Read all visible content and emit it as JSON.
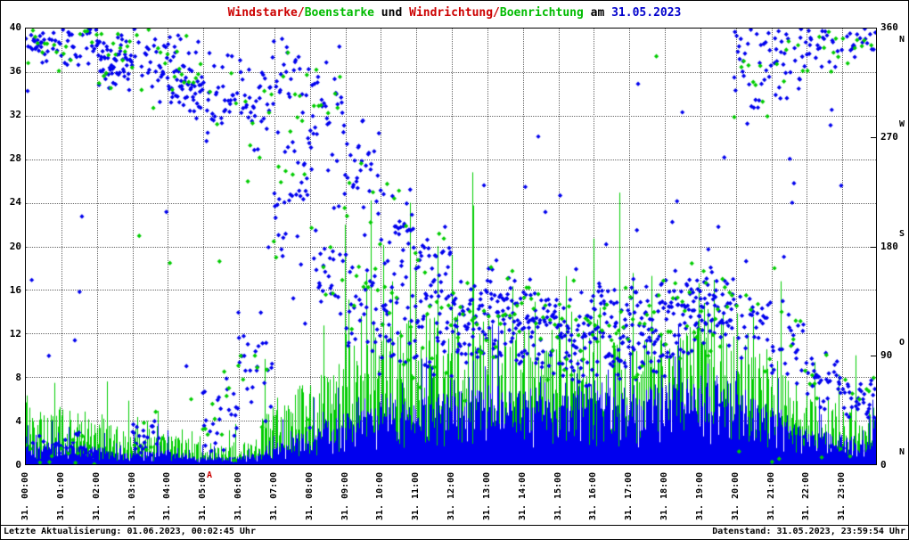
{
  "header": {
    "segments": [
      {
        "text": "Windstarke/",
        "color": "#cc0000"
      },
      {
        "text": "Boenstarke",
        "color": "#00bb00"
      },
      {
        "text": " und ",
        "color": "#000000"
      },
      {
        "text": "Windrichtung/",
        "color": "#cc0000"
      },
      {
        "text": "Boenrichtung",
        "color": "#00bb00"
      },
      {
        "text": " am ",
        "color": "#000000"
      },
      {
        "text": "31.05.2023",
        "color": "#0000cc"
      }
    ]
  },
  "footer": {
    "left": "Letzte Aktualisierung: 01.06.2023, 00:02:45 Uhr",
    "right": "Datenstand: 31.05.2023, 23:59:54 Uhr"
  },
  "marker": {
    "label": "A"
  },
  "chart_data": {
    "type": "line",
    "title": "Windstarke/Boenstarke und Windrichtung/Boenrichtung am 31.05.2023",
    "grid": {
      "style": "dotted",
      "vertical": "hourly",
      "horizontal_step_left": 4
    },
    "x_ticks": [
      "31. 00:00",
      "31. 01:00",
      "31. 02:00",
      "31. 03:00",
      "31. 04:00",
      "31. 05:00",
      "31. 06:00",
      "31. 07:00",
      "31. 08:00",
      "31. 09:00",
      "31. 10:00",
      "31. 11:00",
      "31. 12:00",
      "31. 13:00",
      "31. 14:00",
      "31. 15:00",
      "31. 16:00",
      "31. 17:00",
      "31. 18:00",
      "31. 19:00",
      "31. 20:00",
      "31. 21:00",
      "31. 22:00",
      "31. 23:00"
    ],
    "y_left": {
      "min": 0,
      "max": 40,
      "step": 4,
      "ticks": [
        40,
        36,
        32,
        28,
        24,
        20,
        16,
        12,
        8,
        4,
        0
      ]
    },
    "y_right": {
      "min": 0,
      "max": 360,
      "ticks": [
        {
          "deg": 360,
          "label": "360",
          "compass": "N"
        },
        {
          "deg": 270,
          "label": "270",
          "compass": "W"
        },
        {
          "deg": 180,
          "label": "180",
          "compass": "S"
        },
        {
          "deg": 90,
          "label": "90",
          "compass": "O"
        },
        {
          "deg": 0,
          "label": "0",
          "compass": "N"
        }
      ]
    },
    "series": [
      {
        "name": "Boenstarke",
        "style": "spike",
        "axis": "left",
        "color": "#00cc00",
        "hourly_mean": [
          4,
          4,
          3,
          2.5,
          2.5,
          1.5,
          1.2,
          4,
          6,
          8,
          10,
          10,
          11,
          10,
          9.5,
          9,
          10,
          9,
          9,
          11,
          10,
          7,
          5,
          4
        ],
        "hourly_max": [
          9,
          10,
          7,
          9,
          8,
          5,
          4,
          12,
          18,
          22,
          28,
          24,
          28,
          26,
          24,
          22,
          28,
          24,
          24,
          28,
          26,
          18,
          14,
          10
        ]
      },
      {
        "name": "Windstarke",
        "style": "spike",
        "axis": "left",
        "color": "#0000ee",
        "hourly_mean": [
          1.5,
          1.5,
          1.2,
          0.8,
          1,
          0.5,
          0.5,
          1.2,
          2.5,
          3.5,
          4.5,
          4.5,
          5,
          5.5,
          5,
          5,
          5,
          5,
          5.5,
          6,
          5,
          4,
          2.5,
          2
        ],
        "hourly_max": [
          4,
          4,
          3,
          3,
          4,
          2,
          2,
          4,
          6,
          8,
          10,
          10,
          11,
          13,
          12,
          11,
          12,
          11,
          12,
          14,
          12,
          10,
          7,
          6
        ]
      },
      {
        "name": "Windrichtung",
        "style": "diamond",
        "axis": "right",
        "color": "#0000ee",
        "interval_min": 1,
        "hourly_centers": [
          [
            345,
            5
          ],
          [
            345,
            10
          ],
          [
            335
          ],
          [
            330,
            15
          ],
          [
            320
          ],
          [
            305,
            40
          ],
          [
            295,
            80
          ],
          [
            220,
            320
          ],
          [
            160,
            290
          ],
          [
            130,
            240
          ],
          [
            115,
            190
          ],
          [
            105,
            160
          ],
          [
            115
          ],
          [
            125
          ],
          [
            115
          ],
          [
            105
          ],
          [
            110
          ],
          [
            110
          ],
          [
            120
          ],
          [
            130
          ],
          [
            120,
            330
          ],
          [
            100,
            340
          ],
          [
            70,
            350
          ],
          [
            55,
            355
          ]
        ],
        "hourly_spread": [
          20,
          20,
          28,
          32,
          40,
          45,
          55,
          65,
          60,
          55,
          50,
          45,
          50,
          50,
          45,
          45,
          45,
          45,
          45,
          45,
          50,
          45,
          30,
          25
        ]
      },
      {
        "name": "Boenrichtung",
        "style": "diamond",
        "axis": "right",
        "color": "#00cc00",
        "interval_min": 4,
        "hourly_centers": [
          [
            345,
            5
          ],
          [
            345,
            10
          ],
          [
            335
          ],
          [
            330,
            15
          ],
          [
            320
          ],
          [
            305,
            40
          ],
          [
            295,
            80
          ],
          [
            220,
            320
          ],
          [
            160,
            290
          ],
          [
            130,
            240
          ],
          [
            115,
            190
          ],
          [
            105,
            160
          ],
          [
            115
          ],
          [
            125
          ],
          [
            115
          ],
          [
            105
          ],
          [
            110
          ],
          [
            110
          ],
          [
            120
          ],
          [
            130
          ],
          [
            120,
            330
          ],
          [
            100,
            340
          ],
          [
            70,
            350
          ],
          [
            55,
            355
          ]
        ],
        "hourly_spread": [
          25,
          25,
          33,
          37,
          45,
          50,
          60,
          70,
          65,
          60,
          55,
          50,
          55,
          55,
          50,
          50,
          50,
          50,
          50,
          50,
          55,
          50,
          35,
          30
        ]
      }
    ]
  }
}
